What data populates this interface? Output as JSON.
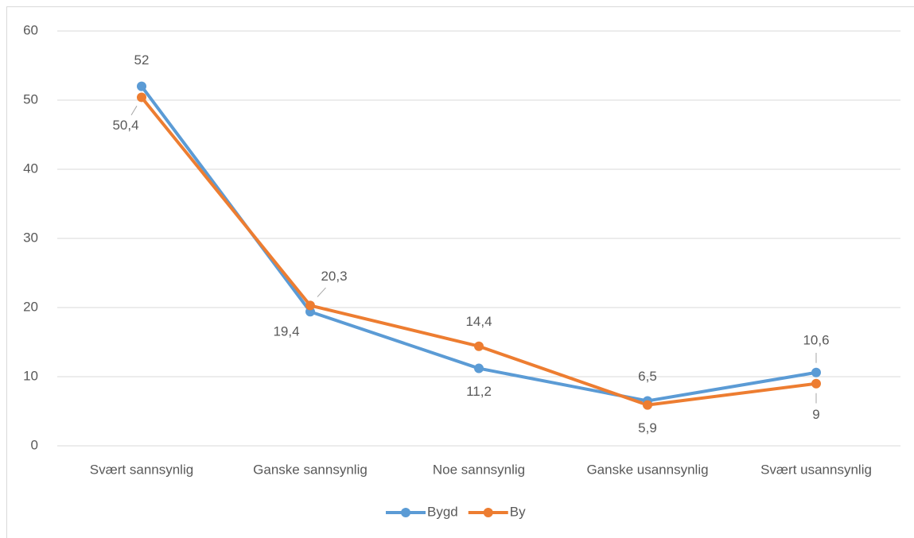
{
  "chart_data": {
    "type": "line",
    "categories": [
      "Svært sannsynlig",
      "Ganske sannsynlig",
      "Noe sannsynlig",
      "Ganske usannsynlig",
      "Svært usannsynlig"
    ],
    "series": [
      {
        "name": "Bygd",
        "color": "#5b9bd5",
        "values": [
          52,
          19.4,
          11.2,
          6.5,
          10.6
        ],
        "value_labels": [
          "52",
          "19,4",
          "11,2",
          "6,5",
          "10,6"
        ]
      },
      {
        "name": "By",
        "color": "#ed7d31",
        "values": [
          50.4,
          20.3,
          14.4,
          5.9,
          9
        ],
        "value_labels": [
          "50,4",
          "20,3",
          "14,4",
          "5,9",
          "9"
        ]
      }
    ],
    "ylim": [
      0,
      60
    ],
    "yticks": [
      0,
      10,
      20,
      30,
      40,
      50,
      60
    ],
    "grid": true,
    "legend": "bottom"
  }
}
